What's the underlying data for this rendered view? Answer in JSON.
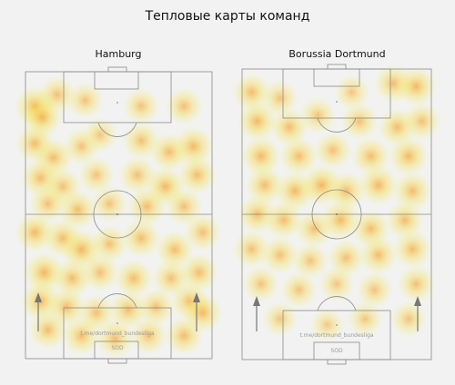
{
  "title": "Тепловые карты команд",
  "pitches": [
    {
      "team": "Hamburg",
      "watermark_top": "t.me/dortmund_bundesliga",
      "watermark_bottom": "SOD",
      "blobs": [
        [
          0.05,
          0.12,
          1.0
        ],
        [
          0.09,
          0.16,
          0.9
        ],
        [
          0.17,
          0.08,
          0.7
        ],
        [
          0.32,
          0.1,
          0.6
        ],
        [
          0.62,
          0.12,
          0.6
        ],
        [
          0.85,
          0.12,
          0.7
        ],
        [
          0.05,
          0.25,
          0.8
        ],
        [
          0.15,
          0.3,
          0.8
        ],
        [
          0.3,
          0.26,
          0.6
        ],
        [
          0.4,
          0.22,
          0.5
        ],
        [
          0.62,
          0.24,
          0.7
        ],
        [
          0.77,
          0.28,
          0.8
        ],
        [
          0.9,
          0.26,
          0.9
        ],
        [
          0.08,
          0.37,
          0.8
        ],
        [
          0.2,
          0.4,
          0.7
        ],
        [
          0.38,
          0.36,
          0.6
        ],
        [
          0.6,
          0.36,
          0.7
        ],
        [
          0.75,
          0.4,
          0.9
        ],
        [
          0.92,
          0.36,
          0.8
        ],
        [
          0.12,
          0.46,
          0.7
        ],
        [
          0.28,
          0.48,
          0.8
        ],
        [
          0.45,
          0.46,
          0.6
        ],
        [
          0.65,
          0.47,
          0.8
        ],
        [
          0.85,
          0.47,
          0.7
        ],
        [
          0.05,
          0.56,
          0.9
        ],
        [
          0.2,
          0.58,
          0.8
        ],
        [
          0.3,
          0.62,
          1.0
        ],
        [
          0.45,
          0.6,
          0.7
        ],
        [
          0.62,
          0.58,
          0.8
        ],
        [
          0.8,
          0.62,
          0.8
        ],
        [
          0.95,
          0.56,
          0.7
        ],
        [
          0.1,
          0.7,
          1.0
        ],
        [
          0.25,
          0.72,
          0.8
        ],
        [
          0.4,
          0.7,
          0.7
        ],
        [
          0.58,
          0.72,
          0.8
        ],
        [
          0.78,
          0.72,
          0.7
        ],
        [
          0.93,
          0.7,
          0.8
        ],
        [
          0.08,
          0.8,
          0.9
        ],
        [
          0.22,
          0.82,
          0.8
        ],
        [
          0.38,
          0.84,
          0.7
        ],
        [
          0.55,
          0.83,
          0.8
        ],
        [
          0.7,
          0.82,
          0.7
        ],
        [
          0.88,
          0.8,
          0.8
        ],
        [
          0.12,
          0.9,
          0.8
        ],
        [
          0.3,
          0.92,
          0.8
        ],
        [
          0.48,
          0.93,
          0.8
        ],
        [
          0.66,
          0.92,
          0.7
        ],
        [
          0.85,
          0.92,
          0.8
        ],
        [
          0.95,
          0.84,
          0.9
        ]
      ]
    },
    {
      "team": "Borussia Dortmund",
      "watermark_top": "t.me/dortmund_bundesliga",
      "watermark_bottom": "SOD",
      "blobs": [
        [
          0.05,
          0.08,
          0.8
        ],
        [
          0.2,
          0.1,
          0.6
        ],
        [
          0.58,
          0.08,
          0.5
        ],
        [
          0.8,
          0.05,
          0.8
        ],
        [
          0.92,
          0.06,
          0.9
        ],
        [
          0.08,
          0.18,
          0.9
        ],
        [
          0.25,
          0.2,
          0.8
        ],
        [
          0.4,
          0.16,
          0.6
        ],
        [
          0.62,
          0.18,
          0.7
        ],
        [
          0.82,
          0.2,
          0.8
        ],
        [
          0.95,
          0.18,
          0.7
        ],
        [
          0.1,
          0.3,
          0.9
        ],
        [
          0.3,
          0.3,
          0.8
        ],
        [
          0.48,
          0.28,
          0.7
        ],
        [
          0.68,
          0.3,
          0.8
        ],
        [
          0.88,
          0.3,
          0.9
        ],
        [
          0.12,
          0.4,
          0.8
        ],
        [
          0.28,
          0.42,
          0.9
        ],
        [
          0.42,
          0.4,
          1.0
        ],
        [
          0.55,
          0.42,
          0.8
        ],
        [
          0.72,
          0.4,
          0.9
        ],
        [
          0.9,
          0.42,
          0.8
        ],
        [
          0.08,
          0.5,
          0.8
        ],
        [
          0.22,
          0.52,
          0.8
        ],
        [
          0.38,
          0.55,
          0.7
        ],
        [
          0.52,
          0.52,
          0.9
        ],
        [
          0.68,
          0.55,
          0.8
        ],
        [
          0.86,
          0.52,
          0.8
        ],
        [
          0.05,
          0.62,
          0.7
        ],
        [
          0.2,
          0.64,
          0.7
        ],
        [
          0.36,
          0.66,
          0.6
        ],
        [
          0.55,
          0.65,
          0.7
        ],
        [
          0.72,
          0.64,
          0.8
        ],
        [
          0.9,
          0.62,
          0.8
        ],
        [
          0.1,
          0.74,
          0.6
        ],
        [
          0.3,
          0.76,
          0.6
        ],
        [
          0.5,
          0.74,
          0.5
        ],
        [
          0.7,
          0.76,
          0.6
        ],
        [
          0.92,
          0.74,
          0.7
        ],
        [
          0.2,
          0.86,
          0.5
        ],
        [
          0.45,
          0.88,
          0.4
        ],
        [
          0.65,
          0.86,
          0.5
        ],
        [
          0.88,
          0.86,
          0.6
        ]
      ]
    }
  ]
}
